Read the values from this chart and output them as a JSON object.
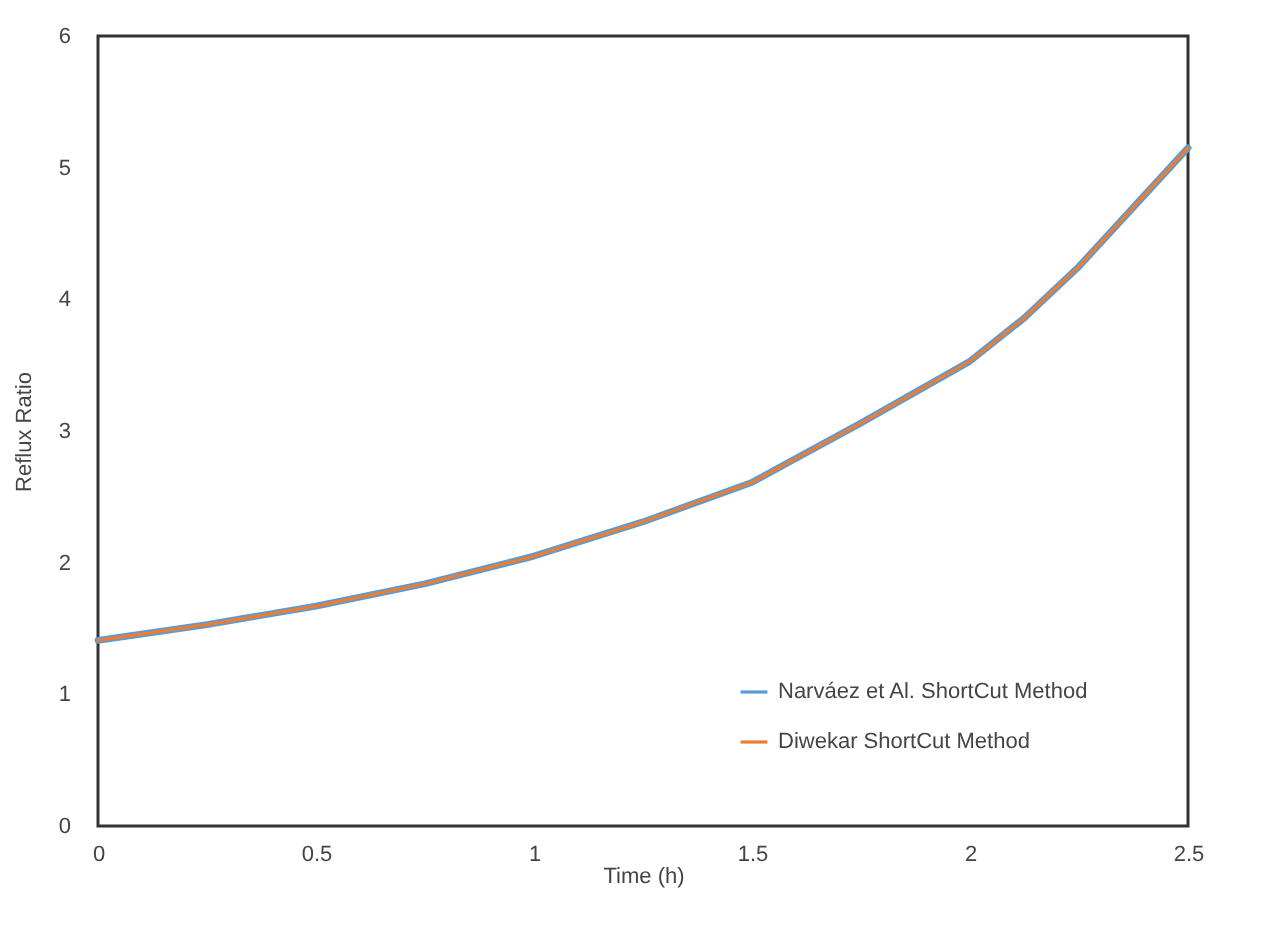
{
  "chart_data": {
    "type": "line",
    "xlabel": "Time (h)",
    "ylabel": "Reflux Ratio",
    "x": [
      0,
      0.25,
      0.5,
      0.75,
      1,
      1.25,
      1.5,
      1.75,
      2,
      2.125,
      2.25,
      2.375,
      2.5
    ],
    "series": [
      {
        "name": "Narváez et Al. ShortCut Method",
        "color": "#5b9bd5",
        "values": [
          1.41,
          1.53,
          1.67,
          1.84,
          2.05,
          2.31,
          2.61,
          3.06,
          3.53,
          3.86,
          4.25,
          4.7,
          5.15
        ]
      },
      {
        "name": "Diwekar ShortCut Method",
        "color": "#ed7d31",
        "values": [
          1.41,
          1.53,
          1.67,
          1.84,
          2.05,
          2.31,
          2.61,
          3.06,
          3.53,
          3.86,
          4.25,
          4.7,
          5.15
        ]
      }
    ],
    "xlim": [
      0,
      2.5
    ],
    "xticks": [
      0,
      0.5,
      1,
      1.5,
      2,
      2.5
    ],
    "ylim": [
      0,
      6
    ],
    "yticks": [
      0,
      1,
      2,
      3,
      4,
      5,
      6
    ],
    "grid": false,
    "legend": "bottom right",
    "marker": "none",
    "line_style": "solid"
  }
}
